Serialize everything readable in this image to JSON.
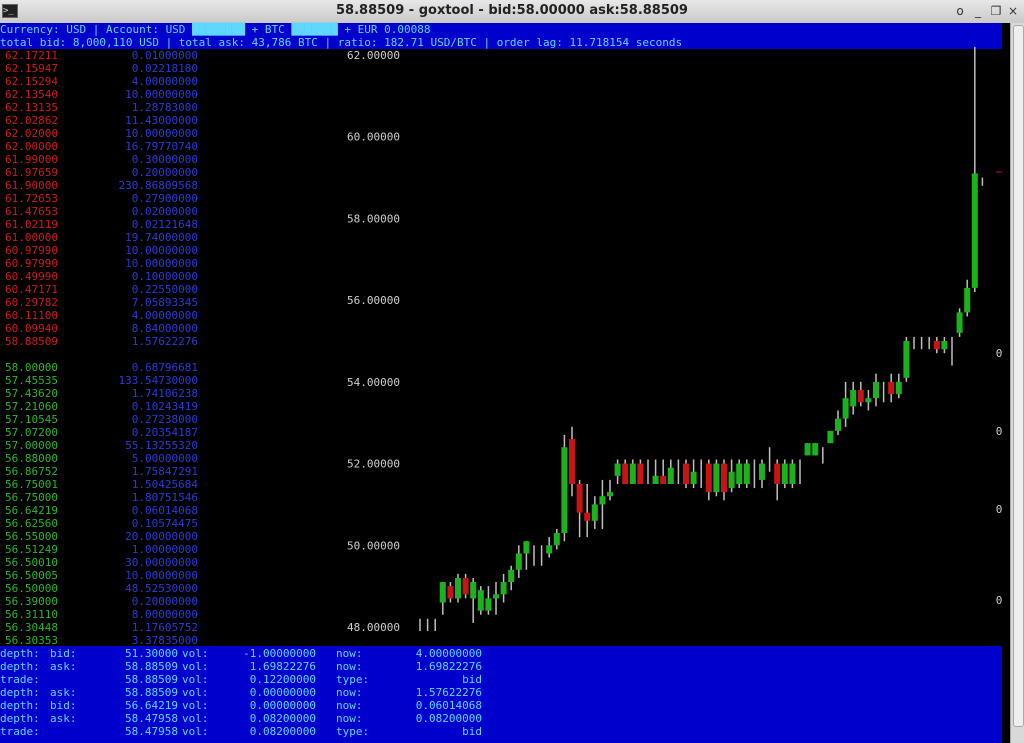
{
  "window": {
    "title": "58.88509 - goxtool - bid:58.00000 ask:58.88509",
    "icon": "terminal-icon",
    "buttons": [
      "o",
      "_",
      "❐",
      "×"
    ]
  },
  "status_lines": {
    "line1": "Currency: USD | Account: USD ████████ + BTC ███████ + EUR 0.00088",
    "line2": "total bid: 8,000,110 USD | total ask: 43,786 BTC | ratio: 182.71 USD/BTC | order lag: 11.718154 seconds"
  },
  "asks": [
    [
      "62.17211",
      "0.01000000"
    ],
    [
      "62.15947",
      "0.02218180"
    ],
    [
      "62.15294",
      "4.00000000"
    ],
    [
      "62.13540",
      "10.00000000"
    ],
    [
      "62.13135",
      "1.28783000"
    ],
    [
      "62.02862",
      "11.43000000"
    ],
    [
      "62.02000",
      "10.00000000"
    ],
    [
      "62.00000",
      "16.79770740"
    ],
    [
      "61.99000",
      "0.30000000"
    ],
    [
      "61.97659",
      "0.20000000"
    ],
    [
      "61.90000",
      "230.86809568"
    ],
    [
      "61.72653",
      "0.27900000"
    ],
    [
      "61.47653",
      "0.02000000"
    ],
    [
      "61.02119",
      "0.02121648"
    ],
    [
      "61.00000",
      "19.74000000"
    ],
    [
      "60.97990",
      "10.00000000"
    ],
    [
      "60.97990",
      "10.00000000"
    ],
    [
      "60.49990",
      "0.10000000"
    ],
    [
      "60.47171",
      "0.22550000"
    ],
    [
      "60.29782",
      "7.05893345"
    ],
    [
      "60.11100",
      "4.00000000"
    ],
    [
      "60.09940",
      "8.84000000"
    ],
    [
      "58.88509",
      "1.57622276"
    ]
  ],
  "bids": [
    [
      "58.00000",
      "0.68796681"
    ],
    [
      "57.45535",
      "133.54730000"
    ],
    [
      "57.43620",
      "1.74106238"
    ],
    [
      "57.21060",
      "0.10243419"
    ],
    [
      "57.10545",
      "0.27238000"
    ],
    [
      "57.07200",
      "0.20354187"
    ],
    [
      "57.00000",
      "55.13255320"
    ],
    [
      "56.88000",
      "5.00000000"
    ],
    [
      "56.86752",
      "1.75847291"
    ],
    [
      "56.75001",
      "1.50425684"
    ],
    [
      "56.75000",
      "1.80751546"
    ],
    [
      "56.64219",
      "0.06014068"
    ],
    [
      "56.62560",
      "0.10574475"
    ],
    [
      "56.55000",
      "20.00000000"
    ],
    [
      "56.51249",
      "1.00000000"
    ],
    [
      "56.50010",
      "30.00000000"
    ],
    [
      "56.50005",
      "10.00000000"
    ],
    [
      "56.50000",
      "48.52530000"
    ],
    [
      "56.39000",
      "0.20000000"
    ],
    [
      "56.31110",
      "8.00000000"
    ],
    [
      "56.30448",
      "1.17605752"
    ],
    [
      "56.30353",
      "3.37835000"
    ]
  ],
  "chart_data": {
    "type": "candlestick",
    "y_tick_labels": [
      "62.00000",
      "60.00000",
      "58.00000",
      "56.00000",
      "54.00000",
      "52.00000",
      "50.00000",
      "48.00000"
    ],
    "y_ticks": [
      62,
      60,
      58,
      56,
      54,
      52,
      50,
      48
    ],
    "ylim": [
      47.7,
      62.2
    ],
    "right_markers": [
      "0",
      "0",
      "0",
      "0"
    ],
    "candles": [
      {
        "o": 48.1,
        "c": 48.1,
        "h": 48.2,
        "l": 47.9
      },
      {
        "o": 48.1,
        "c": 48.1,
        "h": 48.2,
        "l": 47.9
      },
      {
        "o": 48.1,
        "c": 48.1,
        "h": 48.2,
        "l": 47.9
      },
      {
        "o": 48.6,
        "c": 49.1,
        "h": 49.1,
        "l": 48.3
      },
      {
        "o": 49.0,
        "c": 48.7,
        "h": 49.1,
        "l": 48.6
      },
      {
        "o": 48.7,
        "c": 49.2,
        "h": 49.3,
        "l": 48.6
      },
      {
        "o": 49.2,
        "c": 48.8,
        "h": 49.3,
        "l": 48.7
      },
      {
        "o": 48.7,
        "c": 49.1,
        "h": 49.2,
        "l": 48.1
      },
      {
        "o": 48.4,
        "c": 48.9,
        "h": 49.0,
        "l": 48.3
      },
      {
        "o": 48.4,
        "c": 48.7,
        "h": 49.0,
        "l": 48.3
      },
      {
        "o": 48.7,
        "c": 48.8,
        "h": 49.1,
        "l": 48.3
      },
      {
        "o": 48.8,
        "c": 49.1,
        "h": 49.3,
        "l": 48.6
      },
      {
        "o": 49.1,
        "c": 49.4,
        "h": 49.5,
        "l": 48.9
      },
      {
        "o": 49.4,
        "c": 49.8,
        "h": 50.0,
        "l": 49.2
      },
      {
        "o": 49.8,
        "c": 50.1,
        "h": 50.1,
        "l": 49.4
      },
      {
        "o": 49.8,
        "c": 49.8,
        "h": 50.0,
        "l": 49.5
      },
      {
        "o": 49.8,
        "c": 49.8,
        "h": 50.0,
        "l": 49.5
      },
      {
        "o": 49.8,
        "c": 50.0,
        "h": 50.2,
        "l": 49.7
      },
      {
        "o": 50.0,
        "c": 50.3,
        "h": 50.4,
        "l": 49.9
      },
      {
        "o": 50.3,
        "c": 52.4,
        "h": 52.7,
        "l": 50.1
      },
      {
        "o": 52.6,
        "c": 51.5,
        "h": 52.9,
        "l": 51.2
      },
      {
        "o": 51.5,
        "c": 50.8,
        "h": 51.6,
        "l": 50.2
      },
      {
        "o": 50.8,
        "c": 50.6,
        "h": 51.5,
        "l": 50.2
      },
      {
        "o": 50.6,
        "c": 51.0,
        "h": 51.2,
        "l": 50.4
      },
      {
        "o": 51.0,
        "c": 51.2,
        "h": 51.6,
        "l": 50.4
      },
      {
        "o": 51.2,
        "c": 51.3,
        "h": 51.6,
        "l": 51.1
      },
      {
        "o": 51.7,
        "c": 52.0,
        "h": 52.1,
        "l": 51.5
      },
      {
        "o": 52.0,
        "c": 51.5,
        "h": 52.1,
        "l": 51.5
      },
      {
        "o": 51.5,
        "c": 52.0,
        "h": 52.1,
        "l": 51.5
      },
      {
        "o": 52.0,
        "c": 51.5,
        "h": 52.1,
        "l": 51.5
      },
      {
        "o": 52.0,
        "c": 52.0,
        "h": 52.1,
        "l": 51.5
      },
      {
        "o": 51.5,
        "c": 51.7,
        "h": 52.1,
        "l": 51.5
      },
      {
        "o": 51.7,
        "c": 51.5,
        "h": 52.1,
        "l": 51.5
      },
      {
        "o": 51.5,
        "c": 51.9,
        "h": 52.1,
        "l": 51.5
      },
      {
        "o": 52.0,
        "c": 52.0,
        "h": 52.1,
        "l": 51.5
      },
      {
        "o": 52.0,
        "c": 51.5,
        "h": 52.1,
        "l": 51.4
      },
      {
        "o": 51.5,
        "c": 51.8,
        "h": 52.1,
        "l": 51.4
      },
      {
        "o": 52.0,
        "c": 52.0,
        "h": 52.1,
        "l": 51.4
      },
      {
        "o": 52.0,
        "c": 51.3,
        "h": 52.1,
        "l": 51.1
      },
      {
        "o": 51.3,
        "c": 52.0,
        "h": 52.1,
        "l": 51.2
      },
      {
        "o": 52.0,
        "c": 51.3,
        "h": 52.1,
        "l": 51.1
      },
      {
        "o": 51.4,
        "c": 51.8,
        "h": 52.1,
        "l": 51.3
      },
      {
        "o": 51.5,
        "c": 52.0,
        "h": 52.1,
        "l": 51.4
      },
      {
        "o": 51.5,
        "c": 52.0,
        "h": 52.1,
        "l": 51.4
      },
      {
        "o": 52.0,
        "c": 52.0,
        "h": 52.1,
        "l": 51.4
      },
      {
        "o": 51.6,
        "c": 52.0,
        "h": 52.1,
        "l": 51.4
      },
      {
        "o": 52.0,
        "c": 52.0,
        "h": 52.4,
        "l": 51.8
      },
      {
        "o": 52.0,
        "c": 51.5,
        "h": 52.1,
        "l": 51.1
      },
      {
        "o": 51.5,
        "c": 52.0,
        "h": 52.1,
        "l": 51.4
      },
      {
        "o": 51.5,
        "c": 52.0,
        "h": 52.1,
        "l": 51.4
      },
      {
        "o": 52.0,
        "c": 52.0,
        "h": 52.1,
        "l": 51.5
      },
      {
        "o": 52.2,
        "c": 52.5,
        "h": 52.5,
        "l": 52.2
      },
      {
        "o": 52.2,
        "c": 52.5,
        "h": 52.5,
        "l": 52.2
      },
      {
        "o": 52.0,
        "c": 52.0,
        "h": 52.4,
        "l": 52.0
      },
      {
        "o": 52.5,
        "c": 52.8,
        "h": 52.8,
        "l": 52.5
      },
      {
        "o": 52.8,
        "c": 53.1,
        "h": 53.3,
        "l": 52.7
      },
      {
        "o": 53.1,
        "c": 53.6,
        "h": 54.0,
        "l": 52.9
      },
      {
        "o": 53.4,
        "c": 53.8,
        "h": 54.0,
        "l": 53.2
      },
      {
        "o": 53.8,
        "c": 53.5,
        "h": 54.0,
        "l": 53.4
      },
      {
        "o": 53.5,
        "c": 53.6,
        "h": 53.8,
        "l": 53.3
      },
      {
        "o": 53.6,
        "c": 54.0,
        "h": 54.2,
        "l": 53.4
      },
      {
        "o": 53.8,
        "c": 53.8,
        "h": 54.0,
        "l": 53.5
      },
      {
        "o": 54.0,
        "c": 53.7,
        "h": 54.2,
        "l": 53.5
      },
      {
        "o": 53.7,
        "c": 54.0,
        "h": 54.2,
        "l": 53.6
      },
      {
        "o": 54.1,
        "c": 55.0,
        "h": 55.1,
        "l": 54.0
      },
      {
        "o": 55.0,
        "c": 55.0,
        "h": 55.1,
        "l": 54.8
      },
      {
        "o": 55.0,
        "c": 55.0,
        "h": 55.1,
        "l": 54.8
      },
      {
        "o": 55.0,
        "c": 55.0,
        "h": 55.1,
        "l": 54.8
      },
      {
        "o": 55.0,
        "c": 54.8,
        "h": 55.1,
        "l": 54.7
      },
      {
        "o": 54.8,
        "c": 55.0,
        "h": 55.1,
        "l": 54.7
      },
      {
        "o": 55.0,
        "c": 55.0,
        "h": 55.1,
        "l": 54.4
      },
      {
        "o": 55.2,
        "c": 55.7,
        "h": 55.8,
        "l": 55.1
      },
      {
        "o": 55.7,
        "c": 56.3,
        "h": 56.5,
        "l": 55.6
      },
      {
        "o": 56.3,
        "c": 59.1,
        "h": 62.2,
        "l": 56.2
      },
      {
        "o": 58.9,
        "c": 58.9,
        "h": 59.0,
        "l": 58.8
      }
    ]
  },
  "log": [
    {
      "type": "depth:",
      "side": "bid:",
      "price": "51.30000",
      "vlabel": "vol:",
      "vol": "-1.00000000",
      "nlabel": "now:",
      "now": "4.00000000"
    },
    {
      "type": "depth:",
      "side": "ask:",
      "price": "58.88509",
      "vlabel": "vol:",
      "vol": "1.69822276",
      "nlabel": "now:",
      "now": "1.69822276"
    },
    {
      "type": "trade:",
      "side": "",
      "price": "58.88509",
      "vlabel": "vol:",
      "vol": "0.12200000",
      "nlabel": "type:",
      "now": "bid"
    },
    {
      "type": "depth:",
      "side": "ask:",
      "price": "58.88509",
      "vlabel": "vol:",
      "vol": "0.00000000",
      "nlabel": "now:",
      "now": "1.57622276"
    },
    {
      "type": "depth:",
      "side": "bid:",
      "price": "56.64219",
      "vlabel": "vol:",
      "vol": "0.00000000",
      "nlabel": "now:",
      "now": "0.06014068"
    },
    {
      "type": "depth:",
      "side": "ask:",
      "price": "58.47958",
      "vlabel": "vol:",
      "vol": "0.08200000",
      "nlabel": "now:",
      "now": "0.08200000"
    },
    {
      "type": "trade:",
      "side": "",
      "price": "58.47958",
      "vlabel": "vol:",
      "vol": "0.08200000",
      "nlabel": "type:",
      "now": "bid"
    }
  ],
  "colors": {
    "up": "#1db21d",
    "down": "#c81414",
    "wick": "#bfbfbf",
    "status_bg": "#0000cd",
    "status_fg": "#5fd7ff"
  }
}
